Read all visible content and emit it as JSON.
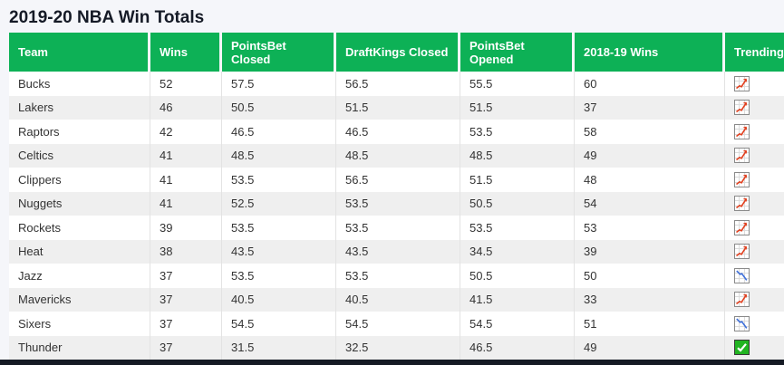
{
  "page": {
    "title": "2019-20 NBA Win Totals",
    "colors": {
      "background": "#f5f6fa",
      "header_green": "#0db156",
      "row_stripe": "#efefef",
      "cell_text": "#333333",
      "bottom_bar": "#151a24",
      "trend_up": "#e2401f",
      "trend_down": "#3e6fd9",
      "check_green": "#22b422"
    }
  },
  "table": {
    "columns": [
      "Team",
      "Wins",
      "PointsBet Closed",
      "DraftKings Closed",
      "PointsBet Opened",
      "2018-19 Wins",
      "Trending"
    ],
    "rows": [
      {
        "team": "Bucks",
        "wins": "52",
        "pointsbet_closed": "57.5",
        "draftkings_closed": "56.5",
        "pointsbet_opened": "55.5",
        "wins_2018_19": "60",
        "trending": "trend-up-icon"
      },
      {
        "team": "Lakers",
        "wins": "46",
        "pointsbet_closed": "50.5",
        "draftkings_closed": "51.5",
        "pointsbet_opened": "51.5",
        "wins_2018_19": "37",
        "trending": "trend-up-icon"
      },
      {
        "team": "Raptors",
        "wins": "42",
        "pointsbet_closed": "46.5",
        "draftkings_closed": "46.5",
        "pointsbet_opened": "53.5",
        "wins_2018_19": "58",
        "trending": "trend-up-icon"
      },
      {
        "team": "Celtics",
        "wins": "41",
        "pointsbet_closed": "48.5",
        "draftkings_closed": "48.5",
        "pointsbet_opened": "48.5",
        "wins_2018_19": "49",
        "trending": "trend-up-icon"
      },
      {
        "team": "Clippers",
        "wins": "41",
        "pointsbet_closed": "53.5",
        "draftkings_closed": "56.5",
        "pointsbet_opened": "51.5",
        "wins_2018_19": "48",
        "trending": "trend-up-icon"
      },
      {
        "team": "Nuggets",
        "wins": "41",
        "pointsbet_closed": "52.5",
        "draftkings_closed": "53.5",
        "pointsbet_opened": "50.5",
        "wins_2018_19": "54",
        "trending": "trend-up-icon"
      },
      {
        "team": "Rockets",
        "wins": "39",
        "pointsbet_closed": "53.5",
        "draftkings_closed": "53.5",
        "pointsbet_opened": "53.5",
        "wins_2018_19": "53",
        "trending": "trend-up-icon"
      },
      {
        "team": "Heat",
        "wins": "38",
        "pointsbet_closed": "43.5",
        "draftkings_closed": "43.5",
        "pointsbet_opened": "34.5",
        "wins_2018_19": "39",
        "trending": "trend-up-icon"
      },
      {
        "team": "Jazz",
        "wins": "37",
        "pointsbet_closed": "53.5",
        "draftkings_closed": "53.5",
        "pointsbet_opened": "50.5",
        "wins_2018_19": "50",
        "trending": "trend-down-icon"
      },
      {
        "team": "Mavericks",
        "wins": "37",
        "pointsbet_closed": "40.5",
        "draftkings_closed": "40.5",
        "pointsbet_opened": "41.5",
        "wins_2018_19": "33",
        "trending": "trend-up-icon"
      },
      {
        "team": "Sixers",
        "wins": "37",
        "pointsbet_closed": "54.5",
        "draftkings_closed": "54.5",
        "pointsbet_opened": "54.5",
        "wins_2018_19": "51",
        "trending": "trend-down-icon"
      },
      {
        "team": "Thunder",
        "wins": "37",
        "pointsbet_closed": "31.5",
        "draftkings_closed": "32.5",
        "pointsbet_opened": "46.5",
        "wins_2018_19": "49",
        "trending": "check-icon"
      }
    ]
  }
}
